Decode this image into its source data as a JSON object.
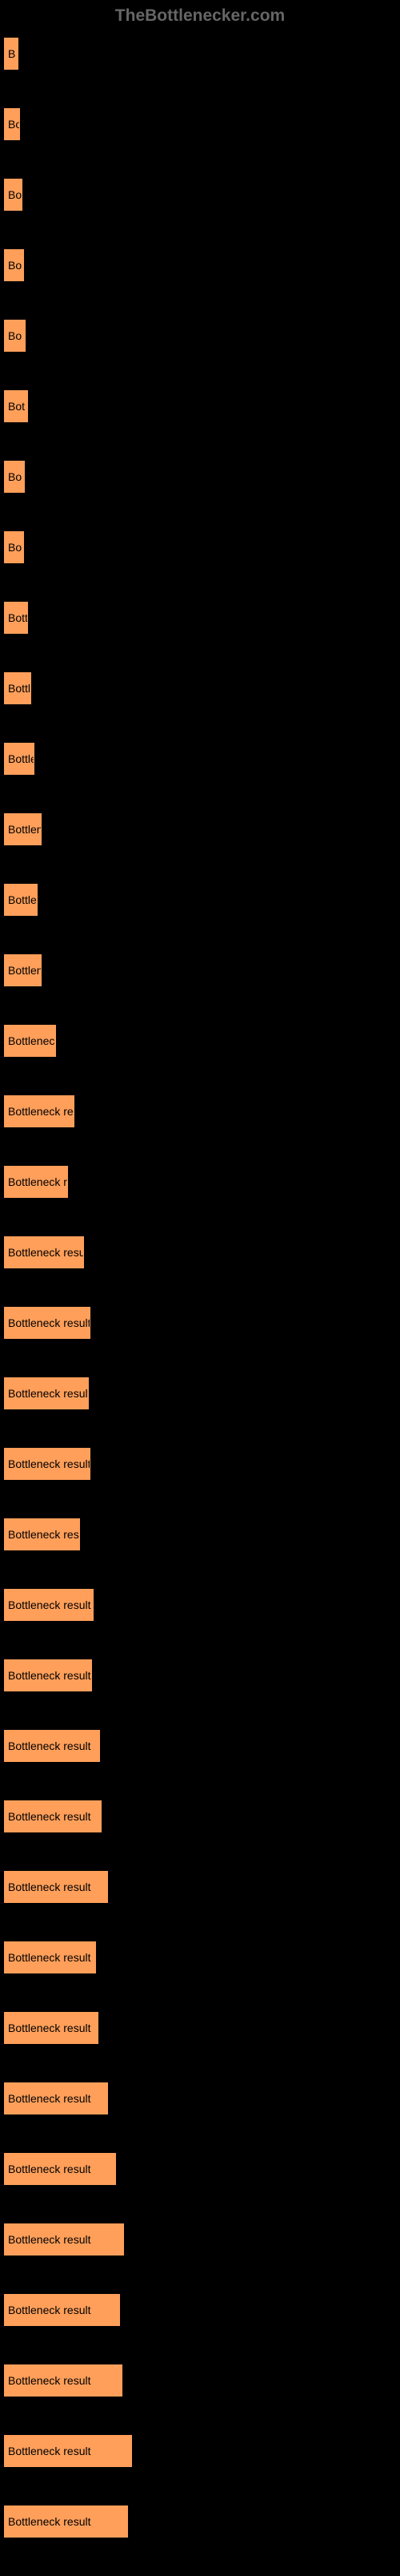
{
  "header": {
    "title": "TheBottlenecker.com"
  },
  "chart": {
    "type": "bar",
    "background_color": "#000000",
    "bar_color": "#ff9f5a",
    "label_color": "#000000",
    "label_fontsize": 14,
    "full_label": "Bottleneck result",
    "max_width": 160,
    "bars": [
      {
        "width": 18,
        "label": "B"
      },
      {
        "width": 20,
        "label": "Bo"
      },
      {
        "width": 23,
        "label": "Bo"
      },
      {
        "width": 25,
        "label": "Bo"
      },
      {
        "width": 27,
        "label": "Bo"
      },
      {
        "width": 30,
        "label": "Bot"
      },
      {
        "width": 26,
        "label": "Bo"
      },
      {
        "width": 25,
        "label": "Bo"
      },
      {
        "width": 30,
        "label": "Bott"
      },
      {
        "width": 34,
        "label": "Bottl"
      },
      {
        "width": 38,
        "label": "Bottle"
      },
      {
        "width": 47,
        "label": "Bottlen"
      },
      {
        "width": 42,
        "label": "Bottle"
      },
      {
        "width": 47,
        "label": "Bottlen"
      },
      {
        "width": 65,
        "label": "Bottleneck"
      },
      {
        "width": 88,
        "label": "Bottleneck res"
      },
      {
        "width": 80,
        "label": "Bottleneck r"
      },
      {
        "width": 100,
        "label": "Bottleneck result"
      },
      {
        "width": 108,
        "label": "Bottleneck result"
      },
      {
        "width": 106,
        "label": "Bottleneck result"
      },
      {
        "width": 108,
        "label": "Bottleneck result"
      },
      {
        "width": 95,
        "label": "Bottleneck resu"
      },
      {
        "width": 112,
        "label": "Bottleneck result"
      },
      {
        "width": 110,
        "label": "Bottleneck result"
      },
      {
        "width": 120,
        "label": "Bottleneck result"
      },
      {
        "width": 122,
        "label": "Bottleneck result"
      },
      {
        "width": 130,
        "label": "Bottleneck result"
      },
      {
        "width": 115,
        "label": "Bottleneck result"
      },
      {
        "width": 118,
        "label": "Bottleneck result"
      },
      {
        "width": 130,
        "label": "Bottleneck result"
      },
      {
        "width": 140,
        "label": "Bottleneck result"
      },
      {
        "width": 150,
        "label": "Bottleneck result"
      },
      {
        "width": 145,
        "label": "Bottleneck result"
      },
      {
        "width": 148,
        "label": "Bottleneck result"
      },
      {
        "width": 160,
        "label": "Bottleneck result"
      },
      {
        "width": 155,
        "label": "Bottleneck result"
      }
    ]
  }
}
